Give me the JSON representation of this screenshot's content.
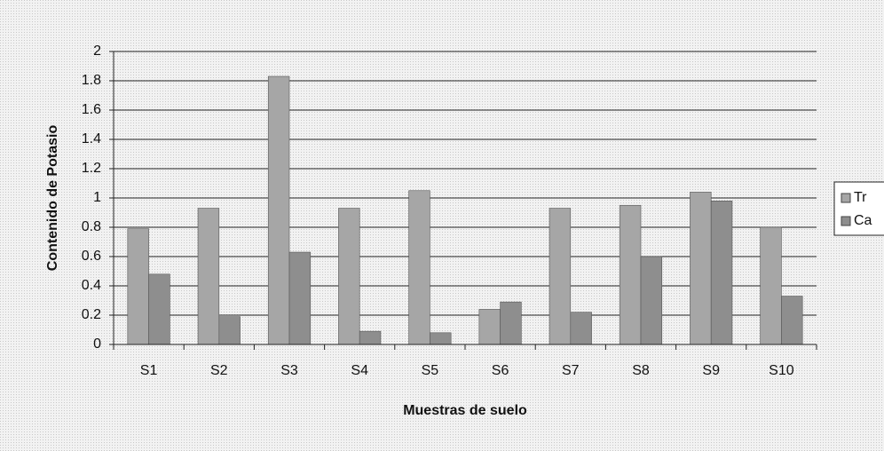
{
  "chart_data": {
    "type": "bar",
    "categories": [
      "S1",
      "S2",
      "S3",
      "S4",
      "S5",
      "S6",
      "S7",
      "S8",
      "S9",
      "S10"
    ],
    "series": [
      {
        "name": "Tr",
        "color": "#a6a6a6",
        "values": [
          0.79,
          0.93,
          1.83,
          0.93,
          1.05,
          0.24,
          0.93,
          0.95,
          1.04,
          0.8
        ]
      },
      {
        "name": "Ca",
        "color": "#8e8e8e",
        "values": [
          0.48,
          0.19,
          0.63,
          0.09,
          0.08,
          0.29,
          0.22,
          0.6,
          0.98,
          0.33
        ]
      }
    ],
    "ylim": [
      0,
      2
    ],
    "yticks": [
      0,
      0.2,
      0.4,
      0.6,
      0.8,
      1,
      1.2,
      1.4,
      1.6,
      1.8,
      2
    ],
    "y_label": "Contenido de Potasio",
    "x_label": "Muestras de suelo",
    "grid": true,
    "legend": "right"
  }
}
